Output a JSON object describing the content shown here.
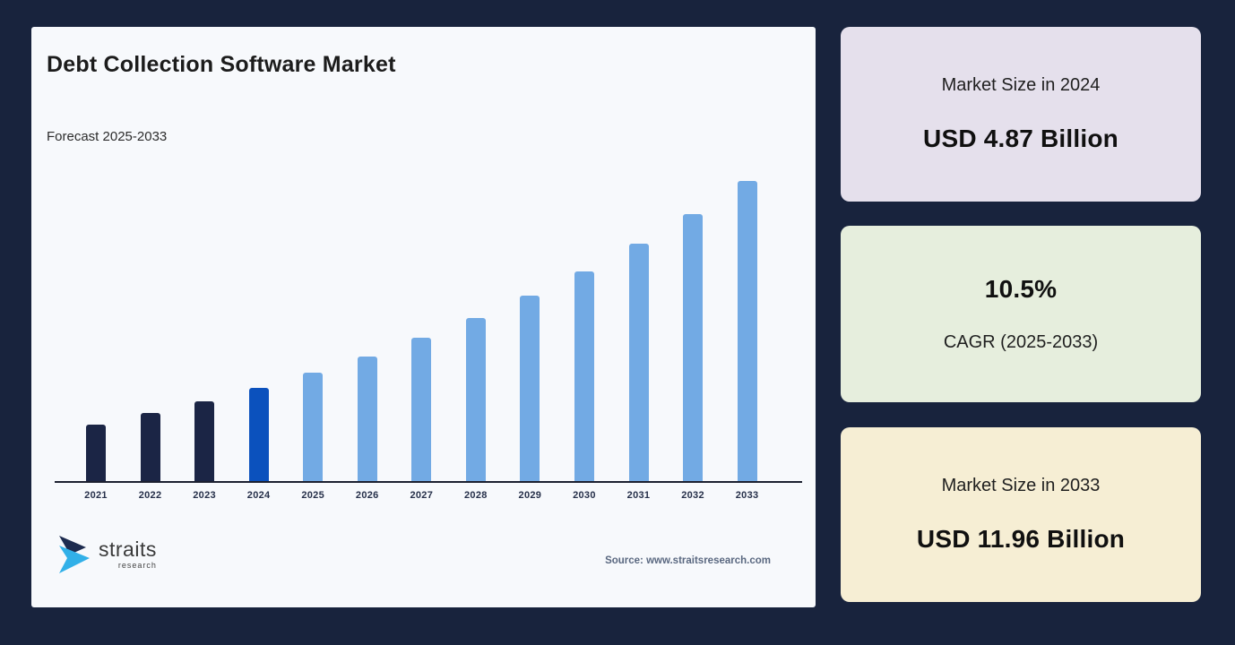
{
  "page": {
    "bg_color": "#18233d"
  },
  "chart_card": {
    "bg_color": "#f7f9fc",
    "title": "Debt Collection Software Market",
    "subtitle": "Forecast 2025-2033",
    "source": "Source: www.straitsresearch.com",
    "logo": {
      "name": "straits",
      "sub": "research",
      "icon_dark_color": "#1d2b4f",
      "icon_blue_color": "#31b0e8"
    }
  },
  "chart_data": {
    "type": "bar",
    "title": "Debt Collection Software Market",
    "subtitle": "Forecast 2025-2033",
    "categories": [
      "2021",
      "2022",
      "2023",
      "2024",
      "2025",
      "2026",
      "2027",
      "2028",
      "2029",
      "2030",
      "2031",
      "2032",
      "2033"
    ],
    "values": [
      3.61,
      3.99,
      4.41,
      4.87,
      5.38,
      5.95,
      6.57,
      7.26,
      8.02,
      8.87,
      9.8,
      10.82,
      11.96
    ],
    "unit": "USD Billion",
    "ylim": [
      0,
      13
    ],
    "grid": false,
    "legend": "none",
    "series_colors": {
      "historical": "#1b2545",
      "current": "#0b51bd",
      "forecast": "#72aae4"
    },
    "color_roles": [
      "historical",
      "historical",
      "historical",
      "current",
      "forecast",
      "forecast",
      "forecast",
      "forecast",
      "forecast",
      "forecast",
      "forecast",
      "forecast",
      "forecast"
    ],
    "axis_label_color": "#26304a",
    "axis_line_color": "#1c2030"
  },
  "stat_cards": [
    {
      "label": "Market Size in 2024",
      "value": "USD 4.87 Billion",
      "bg_color": "#e5e0ec"
    },
    {
      "label": "CAGR (2025-2033)",
      "value": "10.5%",
      "bg_color": "#e6eedd"
    },
    {
      "label": "Market Size in 2033",
      "value": "USD 11.96 Billion",
      "bg_color": "#f6eed4"
    }
  ]
}
